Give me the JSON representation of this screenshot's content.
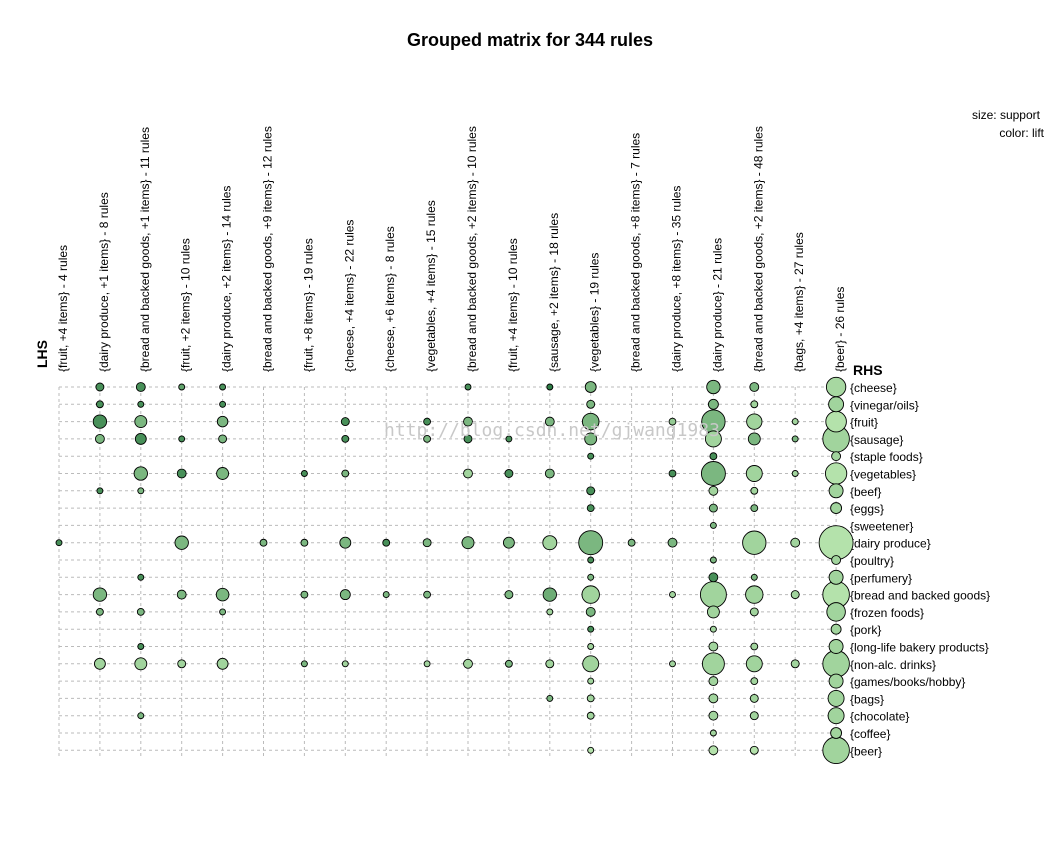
{
  "chart_data": {
    "type": "scatter",
    "subtype": "grouped-matrix",
    "title": "Grouped matrix for 344 rules",
    "lhs_label": "LHS",
    "rhs_label": "RHS",
    "legend": {
      "size": "size: support",
      "color": "color: lift",
      "placement": "top-right"
    },
    "watermark": "http://blog.csdn.net/gjwang1983",
    "lhs_groups": [
      "{fruit, +4 items} - 4 rules",
      "{dairy produce, +1 items} - 8 rules",
      "{bread and backed goods, +1 items} - 11 rules",
      "{fruit, +2 items} - 10 rules",
      "{dairy produce, +2 items} - 14 rules",
      "{bread and backed goods, +9 items} - 12 rules",
      "{fruit, +8 items} - 19 rules",
      "{cheese, +4 items} - 22 rules",
      "{cheese, +6 items} - 8 rules",
      "{vegetables, +4 items} - 15 rules",
      "{bread and backed goods, +2 items} - 10 rules",
      "{fruit, +4 items} - 10 rules",
      "{sausage, +2 items} - 18 rules",
      "{vegetables} - 19 rules",
      "{bread and backed goods, +8 items} - 7 rules",
      "{dairy produce, +8 items} - 35 rules",
      "{dairy produce} - 21 rules",
      "{bread and backed goods, +2 items} - 48 rules",
      "{bags, +4 items} - 27 rules",
      "{beer} - 26 rules"
    ],
    "rhs_items": [
      "{cheese}",
      "{vinegar/oils}",
      "{fruit}",
      "{sausage}",
      "{staple foods}",
      "{vegetables}",
      "{beef}",
      "{eggs}",
      "{sweetener}",
      "{dairy produce}",
      "{poultry}",
      "{perfumery}",
      "{bread and backed goods}",
      "{frozen foods}",
      "{pork}",
      "{long-life bakery products}",
      "{non-alc. drinks}",
      "{games/books/hobby}",
      "{bags}",
      "{chocolate}",
      "{coffee}",
      "{beer}"
    ],
    "point_fields": [
      "rhs_index",
      "lhs_index",
      "support_relative",
      "lift"
    ],
    "points": [
      [
        0,
        1,
        0.16,
        3.0
      ],
      [
        0,
        2,
        0.2,
        3.0
      ],
      [
        0,
        3,
        0.09,
        2.6
      ],
      [
        0,
        4,
        0.09,
        3.0
      ],
      [
        0,
        10,
        0.09,
        3.0
      ],
      [
        0,
        12,
        0.09,
        3.4
      ],
      [
        0,
        13,
        0.3,
        2.2
      ],
      [
        0,
        16,
        0.45,
        2.2
      ],
      [
        0,
        17,
        0.2,
        2.2
      ],
      [
        0,
        19,
        0.94,
        1.5
      ],
      [
        1,
        1,
        0.12,
        3.0
      ],
      [
        1,
        2,
        0.09,
        3.0
      ],
      [
        1,
        4,
        0.09,
        3.0
      ],
      [
        1,
        13,
        0.16,
        2.2
      ],
      [
        1,
        16,
        0.25,
        2.2
      ],
      [
        1,
        17,
        0.12,
        1.6
      ],
      [
        1,
        19,
        0.56,
        1.6
      ],
      [
        2,
        1,
        0.45,
        3.0
      ],
      [
        2,
        2,
        0.36,
        2.2
      ],
      [
        2,
        4,
        0.28,
        2.2
      ],
      [
        2,
        7,
        0.16,
        3.0
      ],
      [
        2,
        9,
        0.12,
        3.0
      ],
      [
        2,
        10,
        0.2,
        2.2
      ],
      [
        2,
        12,
        0.2,
        2.2
      ],
      [
        2,
        13,
        0.69,
        2.2
      ],
      [
        2,
        15,
        0.12,
        1.8
      ],
      [
        2,
        16,
        1.37,
        2.2
      ],
      [
        2,
        17,
        0.59,
        1.6
      ],
      [
        2,
        18,
        0.09,
        1.6
      ],
      [
        2,
        19,
        1.06,
        1.3
      ],
      [
        3,
        1,
        0.2,
        2.2
      ],
      [
        3,
        2,
        0.3,
        3.0
      ],
      [
        3,
        3,
        0.09,
        3.0
      ],
      [
        3,
        4,
        0.16,
        2.2
      ],
      [
        3,
        7,
        0.12,
        3.0
      ],
      [
        3,
        9,
        0.12,
        2.2
      ],
      [
        3,
        10,
        0.16,
        3.0
      ],
      [
        3,
        11,
        0.09,
        3.0
      ],
      [
        3,
        13,
        0.36,
        2.2
      ],
      [
        3,
        16,
        0.64,
        1.6
      ],
      [
        3,
        17,
        0.36,
        2.2
      ],
      [
        3,
        18,
        0.09,
        2.2
      ],
      [
        3,
        19,
        1.77,
        1.6
      ],
      [
        4,
        13,
        0.09,
        3.0
      ],
      [
        4,
        16,
        0.12,
        3.0
      ],
      [
        4,
        19,
        0.2,
        1.6
      ],
      [
        5,
        2,
        0.45,
        2.2
      ],
      [
        5,
        3,
        0.2,
        3.0
      ],
      [
        5,
        4,
        0.36,
        2.2
      ],
      [
        5,
        6,
        0.09,
        3.0
      ],
      [
        5,
        7,
        0.12,
        2.2
      ],
      [
        5,
        10,
        0.2,
        1.6
      ],
      [
        5,
        11,
        0.16,
        3.0
      ],
      [
        5,
        12,
        0.2,
        2.2
      ],
      [
        5,
        15,
        0.12,
        3.0
      ],
      [
        5,
        16,
        1.44,
        2.2
      ],
      [
        5,
        17,
        0.64,
        1.6
      ],
      [
        5,
        18,
        0.09,
        1.6
      ],
      [
        5,
        19,
        1.14,
        1.3
      ],
      [
        6,
        1,
        0.09,
        3.0
      ],
      [
        6,
        2,
        0.09,
        2.2
      ],
      [
        6,
        13,
        0.16,
        3.0
      ],
      [
        6,
        16,
        0.2,
        1.6
      ],
      [
        6,
        17,
        0.12,
        1.6
      ],
      [
        6,
        19,
        0.49,
        1.6
      ],
      [
        7,
        13,
        0.12,
        3.0
      ],
      [
        7,
        16,
        0.16,
        2.2
      ],
      [
        7,
        17,
        0.12,
        2.2
      ],
      [
        7,
        19,
        0.3,
        1.6
      ],
      [
        8,
        16,
        0.09,
        2.2
      ],
      [
        9,
        0,
        0.09,
        3.0
      ],
      [
        9,
        3,
        0.45,
        2.2
      ],
      [
        9,
        5,
        0.12,
        2.2
      ],
      [
        9,
        6,
        0.12,
        2.2
      ],
      [
        9,
        7,
        0.3,
        2.2
      ],
      [
        9,
        8,
        0.12,
        3.0
      ],
      [
        9,
        9,
        0.16,
        2.2
      ],
      [
        9,
        10,
        0.36,
        2.2
      ],
      [
        9,
        11,
        0.3,
        2.2
      ],
      [
        9,
        12,
        0.49,
        1.6
      ],
      [
        9,
        13,
        1.44,
        2.2
      ],
      [
        9,
        14,
        0.12,
        2.2
      ],
      [
        9,
        15,
        0.2,
        2.2
      ],
      [
        9,
        17,
        1.37,
        1.6
      ],
      [
        9,
        18,
        0.2,
        1.6
      ],
      [
        9,
        19,
        2.89,
        1.3
      ],
      [
        10,
        13,
        0.09,
        3.0
      ],
      [
        10,
        16,
        0.09,
        2.2
      ],
      [
        10,
        19,
        0.2,
        1.6
      ],
      [
        11,
        2,
        0.09,
        3.0
      ],
      [
        11,
        13,
        0.09,
        2.2
      ],
      [
        11,
        16,
        0.2,
        3.0
      ],
      [
        11,
        17,
        0.09,
        2.2
      ],
      [
        11,
        19,
        0.49,
        1.6
      ],
      [
        12,
        1,
        0.45,
        2.2
      ],
      [
        12,
        3,
        0.2,
        2.2
      ],
      [
        12,
        4,
        0.4,
        2.2
      ],
      [
        12,
        6,
        0.12,
        2.2
      ],
      [
        12,
        7,
        0.25,
        2.2
      ],
      [
        12,
        8,
        0.09,
        2.2
      ],
      [
        12,
        9,
        0.12,
        2.2
      ],
      [
        12,
        11,
        0.16,
        2.2
      ],
      [
        12,
        12,
        0.45,
        2.4
      ],
      [
        12,
        13,
        0.76,
        1.6
      ],
      [
        12,
        15,
        0.09,
        1.6
      ],
      [
        12,
        16,
        1.69,
        1.6
      ],
      [
        12,
        17,
        0.76,
        1.6
      ],
      [
        12,
        18,
        0.16,
        1.6
      ],
      [
        12,
        19,
        1.77,
        1.3
      ],
      [
        13,
        1,
        0.12,
        2.2
      ],
      [
        13,
        2,
        0.12,
        2.2
      ],
      [
        13,
        4,
        0.09,
        2.2
      ],
      [
        13,
        12,
        0.09,
        1.6
      ],
      [
        13,
        13,
        0.2,
        2.2
      ],
      [
        13,
        16,
        0.36,
        1.6
      ],
      [
        13,
        17,
        0.16,
        1.6
      ],
      [
        13,
        19,
        0.86,
        1.6
      ],
      [
        14,
        13,
        0.09,
        3.0
      ],
      [
        14,
        16,
        0.09,
        1.6
      ],
      [
        14,
        19,
        0.25,
        1.6
      ],
      [
        15,
        2,
        0.09,
        3.0
      ],
      [
        15,
        13,
        0.09,
        1.6
      ],
      [
        15,
        16,
        0.2,
        1.6
      ],
      [
        15,
        17,
        0.12,
        1.6
      ],
      [
        15,
        19,
        0.49,
        1.6
      ],
      [
        16,
        1,
        0.3,
        1.6
      ],
      [
        16,
        2,
        0.36,
        1.6
      ],
      [
        16,
        3,
        0.16,
        1.6
      ],
      [
        16,
        4,
        0.3,
        1.6
      ],
      [
        16,
        6,
        0.09,
        2.2
      ],
      [
        16,
        7,
        0.09,
        1.6
      ],
      [
        16,
        9,
        0.09,
        1.6
      ],
      [
        16,
        10,
        0.2,
        1.6
      ],
      [
        16,
        11,
        0.12,
        2.2
      ],
      [
        16,
        12,
        0.16,
        1.6
      ],
      [
        16,
        13,
        0.64,
        1.6
      ],
      [
        16,
        15,
        0.09,
        1.6
      ],
      [
        16,
        16,
        1.21,
        1.6
      ],
      [
        16,
        17,
        0.64,
        1.6
      ],
      [
        16,
        18,
        0.16,
        1.6
      ],
      [
        16,
        19,
        1.77,
        1.6
      ],
      [
        17,
        13,
        0.09,
        1.6
      ],
      [
        17,
        16,
        0.2,
        1.6
      ],
      [
        17,
        17,
        0.12,
        1.6
      ],
      [
        17,
        19,
        0.49,
        1.6
      ],
      [
        18,
        12,
        0.09,
        2.2
      ],
      [
        18,
        13,
        0.12,
        1.6
      ],
      [
        18,
        16,
        0.2,
        1.6
      ],
      [
        18,
        17,
        0.16,
        1.6
      ],
      [
        18,
        19,
        0.64,
        1.6
      ],
      [
        19,
        2,
        0.09,
        2.2
      ],
      [
        19,
        13,
        0.12,
        1.6
      ],
      [
        19,
        16,
        0.2,
        1.6
      ],
      [
        19,
        17,
        0.16,
        1.6
      ],
      [
        19,
        19,
        0.64,
        1.6
      ],
      [
        20,
        16,
        0.09,
        1.6
      ],
      [
        20,
        19,
        0.3,
        1.6
      ],
      [
        21,
        13,
        0.09,
        1.3
      ],
      [
        21,
        16,
        0.2,
        1.3
      ],
      [
        21,
        17,
        0.16,
        1.3
      ],
      [
        21,
        19,
        1.77,
        1.6
      ]
    ],
    "lift_range": [
      1.3,
      3.4
    ],
    "colors": {
      "low_lift": "#b4e2ab",
      "high_lift": "#2e7d46",
      "stroke": "#000000",
      "grid": "#bbbbbb",
      "watermark": "#c8c8c8"
    }
  }
}
